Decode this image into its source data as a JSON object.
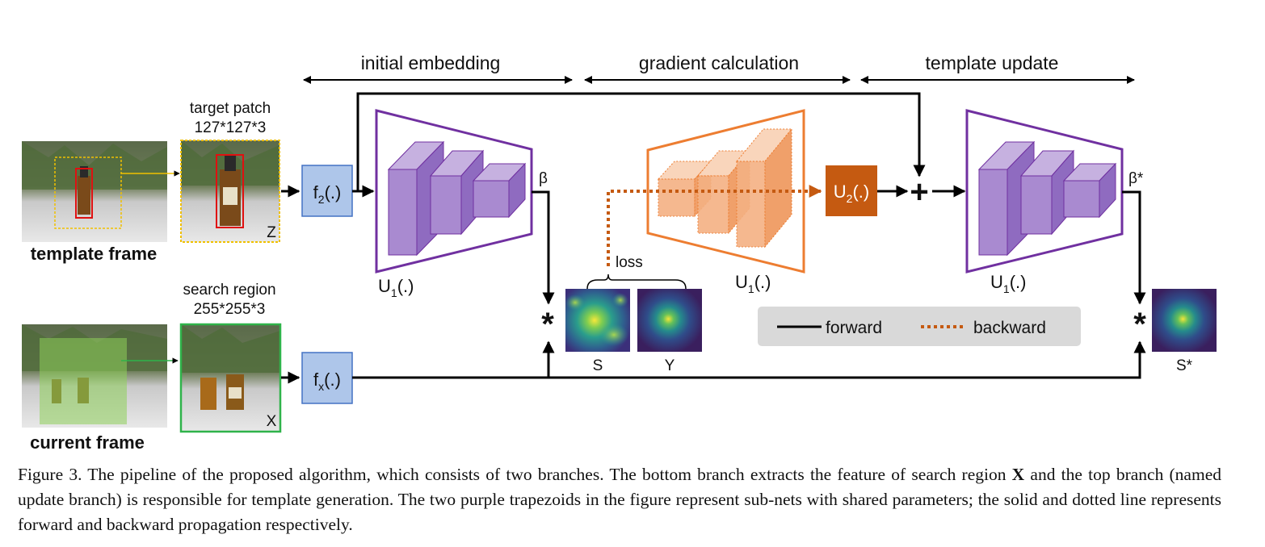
{
  "stages": {
    "initial_embedding": "initial embedding",
    "gradient_calculation": "gradient calculation",
    "template_update": "template update"
  },
  "top_branch": {
    "template_frame": "template frame",
    "target_patch": "target patch",
    "target_patch_size": "127*127*3",
    "patch_letter": "Z",
    "f2_base": "f",
    "f2_sub": "2",
    "f2_tail": "(.)",
    "beta": "β",
    "beta_star": "β*"
  },
  "bottom_branch": {
    "current_frame": "current frame",
    "search_region": "search region",
    "search_region_size": "255*255*3",
    "region_letter": "X",
    "fx_base": "f",
    "fx_sub": "x",
    "fx_tail": "(.)"
  },
  "subnets": {
    "u1_base": "U",
    "u1_sub": "1",
    "u1_tail": "(.)",
    "u2_base": "U",
    "u2_sub": "2",
    "u2_tail": "(.)"
  },
  "maps": {
    "loss": "loss",
    "s": "S",
    "y": "Y",
    "s_star": "S*",
    "correlation_symbol": "*",
    "sum_symbol": "+"
  },
  "legend": {
    "forward": "forward",
    "backward": "backward"
  },
  "colors": {
    "purple": "#7030a0",
    "purple_fill": "#a98ad0",
    "orange": "#ed7d31",
    "orange_fill": "#f4b183",
    "u2_fill": "#c55a11",
    "f_box_fill": "#aec6ea",
    "f_box_stroke": "#4472c4",
    "template_box": "#f0c000",
    "search_box": "#2fb34a",
    "backward_dash": "#c55a11",
    "legend_bg": "#d9d9d9"
  },
  "caption": {
    "lead": "Figure 3. The pipeline of the proposed algorithm, which consists of two branches. The bottom branch extracts the feature of search region ",
    "bold_x": "X",
    "rest": " and the top branch (named update branch) is responsible for template generation.  The two purple trapezoids in the figure represent sub-nets with shared parameters; the solid and dotted line represents forward and backward propagation respectively."
  }
}
